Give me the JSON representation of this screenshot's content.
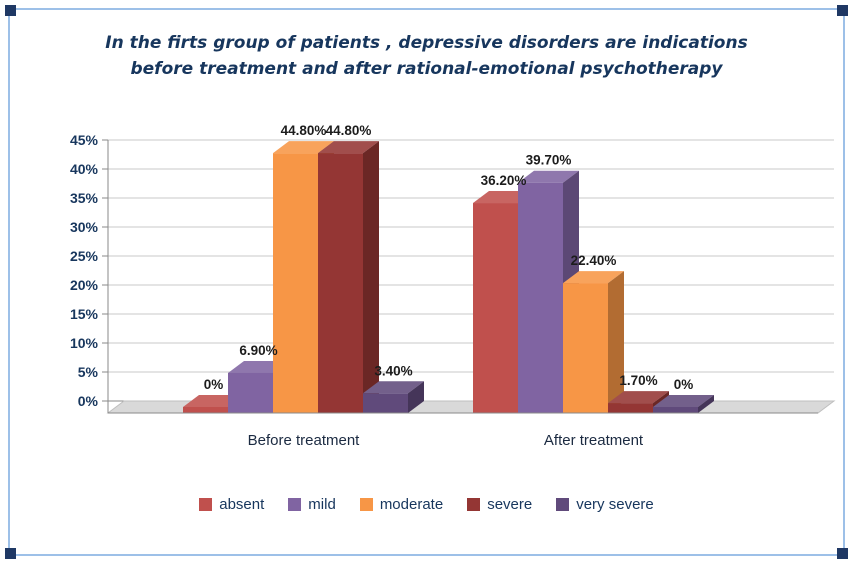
{
  "title_lines": [
    "In the firts group of patients , depressive disorders are indications",
    "before treatment and after rational-emotional psychotherapy"
  ],
  "colors": {
    "frame_border": "#9DC0E8",
    "corner_handle": "#1F3864",
    "background": "#FFFFFF",
    "grid": "#C8C8C8",
    "axis": "#8A8A8A",
    "floor": "#D9D9D9",
    "floor_edge": "#BFBFBF",
    "tick_text": "#17365D",
    "data_label_text": "#1C1C1C",
    "category_text": "#1B2A41",
    "legend_text": "#17365D"
  },
  "chart_data": {
    "type": "bar",
    "style": "3d",
    "title": "In the firts group of patients , depressive disorders are indications before treatment and after rational-emotional psychotherapy",
    "categories": [
      "Before treatment",
      "After treatment"
    ],
    "series": [
      {
        "name": "absent",
        "color": "#C0504D",
        "values": [
          0,
          36.2
        ],
        "labels": [
          "0%",
          "36.20%"
        ]
      },
      {
        "name": "mild",
        "color": "#8064A2",
        "values": [
          6.9,
          39.7
        ],
        "labels": [
          "6.90%",
          "39.70%"
        ]
      },
      {
        "name": "moderate",
        "color": "#F79646",
        "values": [
          44.8,
          22.4
        ],
        "labels": [
          "44.80%",
          "22.40%"
        ]
      },
      {
        "name": "severe",
        "color": "#943634",
        "values": [
          44.8,
          1.7
        ],
        "labels": [
          "44.80%",
          "1.70%"
        ]
      },
      {
        "name": "very severe",
        "color": "#604A7B",
        "values": [
          3.4,
          0
        ],
        "labels": [
          "3.40%",
          "0%"
        ]
      }
    ],
    "xlabel": "",
    "ylabel": "",
    "ylim": [
      0,
      45
    ],
    "ytick_step": 5,
    "ytick_labels": [
      "0%",
      "5%",
      "10%",
      "15%",
      "20%",
      "25%",
      "30%",
      "35%",
      "40%",
      "45%"
    ],
    "grid": true,
    "legend_position": "bottom"
  }
}
